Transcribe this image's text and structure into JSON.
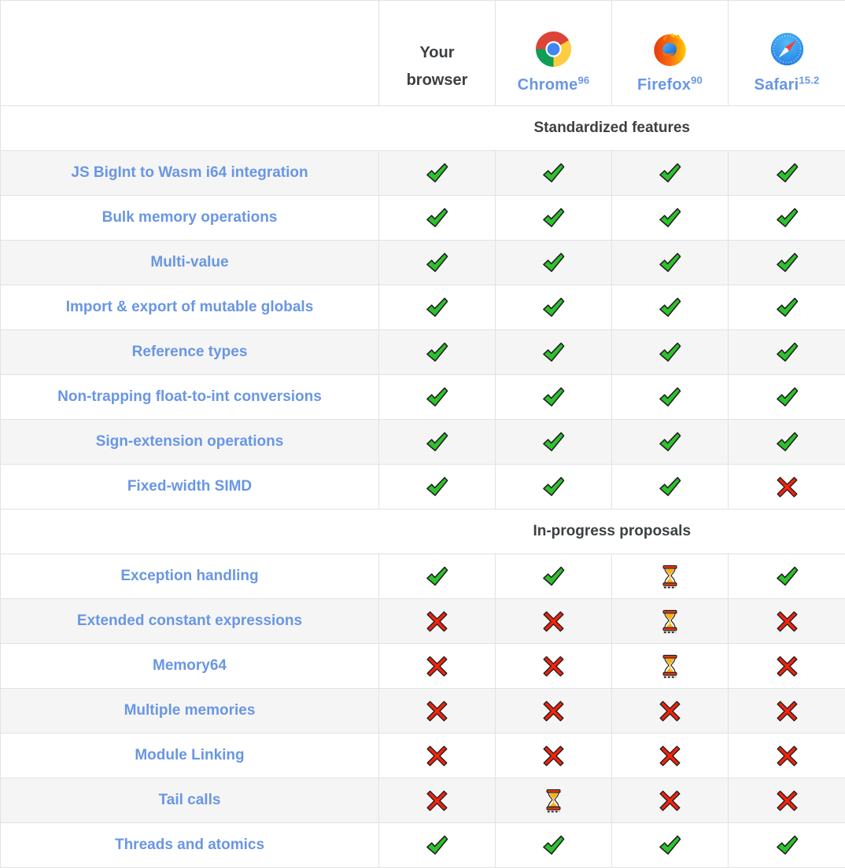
{
  "header": {
    "columns": [
      {
        "id": "your-browser",
        "label": "Your browser",
        "icon": null
      },
      {
        "id": "chrome",
        "label": "Chrome",
        "version": "96",
        "icon": "chrome-logo-icon"
      },
      {
        "id": "firefox",
        "label": "Firefox",
        "version": "90",
        "icon": "firefox-logo-icon"
      },
      {
        "id": "safari",
        "label": "Safari",
        "version": "15.2",
        "icon": "safari-logo-icon"
      }
    ]
  },
  "legend": {
    "yes": "check-icon",
    "no": "cross-icon",
    "in-progress": "hourglass-icon"
  },
  "sections": [
    {
      "title": "Standardized features",
      "rows": [
        {
          "feature": "JS BigInt to Wasm i64 integration",
          "support": [
            "yes",
            "yes",
            "yes",
            "yes"
          ]
        },
        {
          "feature": "Bulk memory operations",
          "support": [
            "yes",
            "yes",
            "yes",
            "yes"
          ]
        },
        {
          "feature": "Multi-value",
          "support": [
            "yes",
            "yes",
            "yes",
            "yes"
          ]
        },
        {
          "feature": "Import & export of mutable globals",
          "support": [
            "yes",
            "yes",
            "yes",
            "yes"
          ]
        },
        {
          "feature": "Reference types",
          "support": [
            "yes",
            "yes",
            "yes",
            "yes"
          ]
        },
        {
          "feature": "Non-trapping float-to-int conversions",
          "support": [
            "yes",
            "yes",
            "yes",
            "yes"
          ]
        },
        {
          "feature": "Sign-extension operations",
          "support": [
            "yes",
            "yes",
            "yes",
            "yes"
          ]
        },
        {
          "feature": "Fixed-width SIMD",
          "support": [
            "yes",
            "yes",
            "yes",
            "no"
          ]
        }
      ]
    },
    {
      "title": "In-progress proposals",
      "rows": [
        {
          "feature": "Exception handling",
          "support": [
            "yes",
            "yes",
            "in-progress",
            "yes"
          ]
        },
        {
          "feature": "Extended constant expressions",
          "support": [
            "no",
            "no",
            "in-progress",
            "no"
          ]
        },
        {
          "feature": "Memory64",
          "support": [
            "no",
            "no",
            "in-progress",
            "no"
          ]
        },
        {
          "feature": "Multiple memories",
          "support": [
            "no",
            "no",
            "no",
            "no"
          ]
        },
        {
          "feature": "Module Linking",
          "support": [
            "no",
            "no",
            "no",
            "no"
          ]
        },
        {
          "feature": "Tail calls",
          "support": [
            "no",
            "in-progress",
            "no",
            "no"
          ]
        },
        {
          "feature": "Threads and atomics",
          "support": [
            "yes",
            "yes",
            "yes",
            "yes"
          ]
        }
      ]
    }
  ],
  "colors": {
    "link_blue": "#6996e4",
    "heading_gray": "#3c4043",
    "row_shade": "#f5f5f5",
    "border": "#e2e2e2",
    "check_green": "#2fc12e",
    "cross_red": "#f3230c",
    "hourglass_amber": "#fcb10c",
    "hourglass_red": "#e03616"
  }
}
